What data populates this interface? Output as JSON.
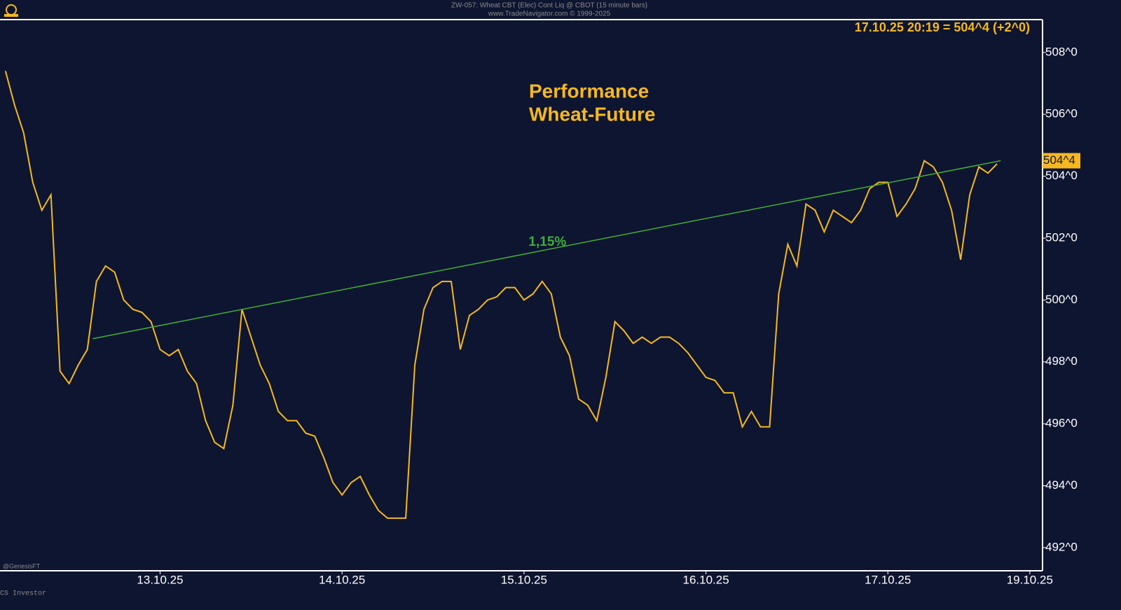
{
  "chart_data": {
    "type": "line",
    "header": "ZW-057: Wheat CBT (Elec) Cont Liq @ CBOT (15 minute bars)",
    "header_sub": "www.TradeNavigator.com © 1999-2025",
    "title_lines": [
      "Performance",
      "Wheat-Future"
    ],
    "status": "17.10.25 20:19 = 504^4 (+2^0)",
    "last_price": {
      "value": 504.5,
      "label": "504^4"
    },
    "annotation": "1,15%",
    "footer_left": "@GenesisFT",
    "footer_bottom": "CS Investor",
    "xlim": [
      1.2,
      58.5
    ],
    "xticks": [
      {
        "value": 10,
        "label": "13.10.25"
      },
      {
        "value": 20,
        "label": "14.10.25"
      },
      {
        "value": 30,
        "label": "15.10.25"
      },
      {
        "value": 40,
        "label": "16.10.25"
      },
      {
        "value": 50,
        "label": "17.10.25"
      },
      {
        "value": 57.8,
        "label": "19.10.25"
      }
    ],
    "ylim": [
      491.25,
      509.06
    ],
    "yticks": [
      {
        "value": 492,
        "label": "492^0"
      },
      {
        "value": 494,
        "label": "494^0"
      },
      {
        "value": 496,
        "label": "496^0"
      },
      {
        "value": 498,
        "label": "498^0"
      },
      {
        "value": 500,
        "label": "500^0"
      },
      {
        "value": 502,
        "label": "502^0"
      },
      {
        "value": 504,
        "label": "504^0"
      },
      {
        "value": 506,
        "label": "506^0"
      },
      {
        "value": 508,
        "label": "508^0"
      }
    ],
    "series": [
      {
        "color": "#f5b820",
        "x": [
          1.5,
          2,
          2.5,
          3,
          3.5,
          4,
          4.5,
          5,
          5.5,
          6,
          6.5,
          7,
          7.5,
          8,
          8.5,
          9,
          9.5,
          10,
          10.5,
          11,
          11.5,
          12,
          12.5,
          13,
          13.5,
          14,
          14.5,
          15,
          15.5,
          16,
          16.5,
          17,
          17.5,
          18,
          18.5,
          19,
          19.5,
          20,
          20.5,
          21,
          21.5,
          22,
          22.5,
          23,
          23.5,
          24,
          24.5,
          25,
          25.5,
          26,
          26.5,
          27,
          27.5,
          28,
          28.5,
          29,
          29.5,
          30,
          30.5,
          31,
          31.5,
          32,
          32.5,
          33,
          33.5,
          34,
          34.5,
          35,
          35.5,
          36,
          36.5,
          37,
          37.5,
          38,
          38.5,
          39,
          39.5,
          40,
          40.5,
          41,
          41.5,
          42,
          42.5,
          43,
          43.5,
          44,
          44.5,
          45,
          45.5,
          46,
          46.5,
          47,
          47.5,
          48,
          48.5,
          49,
          49.5,
          50,
          50.5,
          51,
          51.5,
          52,
          52.5,
          53,
          53.5,
          54,
          54.5,
          55,
          55.5,
          56
        ],
        "values": [
          507.4,
          506.3,
          505.4,
          503.8,
          502.9,
          503.4,
          497.7,
          497.3,
          497.9,
          498.4,
          500.6,
          501.1,
          500.9,
          500.0,
          499.7,
          499.6,
          499.3,
          498.4,
          498.2,
          498.4,
          497.7,
          497.3,
          496.1,
          495.4,
          495.2,
          496.6,
          499.7,
          498.8,
          497.9,
          497.3,
          496.4,
          496.1,
          496.1,
          495.7,
          495.6,
          494.9,
          494.1,
          493.7,
          494.1,
          494.3,
          493.7,
          493.2,
          492.95,
          492.95,
          492.95,
          497.9,
          499.7,
          500.4,
          500.6,
          500.6,
          498.4,
          499.5,
          499.7,
          500.0,
          500.1,
          500.4,
          500.4,
          500.0,
          500.2,
          500.6,
          500.2,
          498.8,
          498.2,
          496.8,
          496.6,
          496.1,
          497.5,
          499.3,
          499.0,
          498.6,
          498.8,
          498.6,
          498.8,
          498.8,
          498.6,
          498.3,
          497.9,
          497.5,
          497.4,
          497.0,
          497.0,
          495.9,
          496.4,
          495.9,
          495.9,
          500.2,
          501.8,
          501.1,
          503.1,
          502.9,
          502.2,
          502.9,
          502.7,
          502.5,
          502.9,
          503.6,
          503.8,
          503.8,
          502.7,
          503.1,
          503.6,
          504.5,
          504.3,
          503.8,
          502.9,
          501.3,
          503.4,
          504.3,
          504.1,
          504.4
        ]
      },
      {
        "color": "#3fae3a",
        "x": [
          6.3,
          56.2
        ],
        "values": [
          498.75,
          504.5
        ]
      }
    ]
  }
}
